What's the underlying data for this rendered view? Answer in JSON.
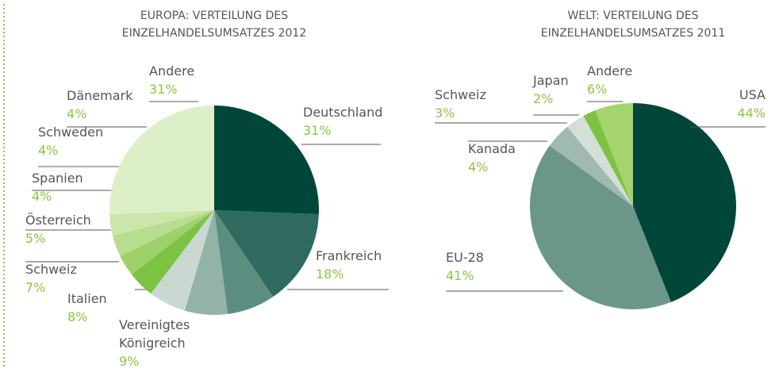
{
  "chart_data": [
    {
      "type": "pie",
      "title": "EUROPA: VERTEILUNG DES EINZELHANDELSUMSATZES 2012",
      "categories": [
        "Deutschland",
        "Frankreich",
        "Vereinigtes Königreich",
        "Italien",
        "Schweiz",
        "Österreich",
        "Spanien",
        "Schweden",
        "Dänemark",
        "Andere"
      ],
      "values": [
        31,
        18,
        9,
        8,
        7,
        5,
        4,
        4,
        4,
        31
      ],
      "value_labels": [
        "31%",
        "18%",
        "9%",
        "8%",
        "7%",
        "5%",
        "4%",
        "4%",
        "4%",
        "31%"
      ],
      "colors": [
        "#00473a",
        "#2e6b5e",
        "#5b8e80",
        "#93b3a7",
        "#c9d9d2",
        "#7dc242",
        "#9fd16a",
        "#b7dd8e",
        "#cae6aa",
        "#ddefc8"
      ]
    },
    {
      "type": "pie",
      "title": "WELT: VERTEILUNG DES EINZELHANDELSUMSATZES 2011",
      "categories": [
        "USA",
        "EU-28",
        "Kanada",
        "Schweiz",
        "Japan",
        "Andere"
      ],
      "values": [
        44,
        41,
        4,
        3,
        2,
        6
      ],
      "value_labels": [
        "44%",
        "41%",
        "4%",
        "3%",
        "2%",
        "6%"
      ],
      "colors": [
        "#00473a",
        "#6a978a",
        "#a0bab1",
        "#d3e0da",
        "#7dc242",
        "#a5d46e"
      ]
    }
  ]
}
